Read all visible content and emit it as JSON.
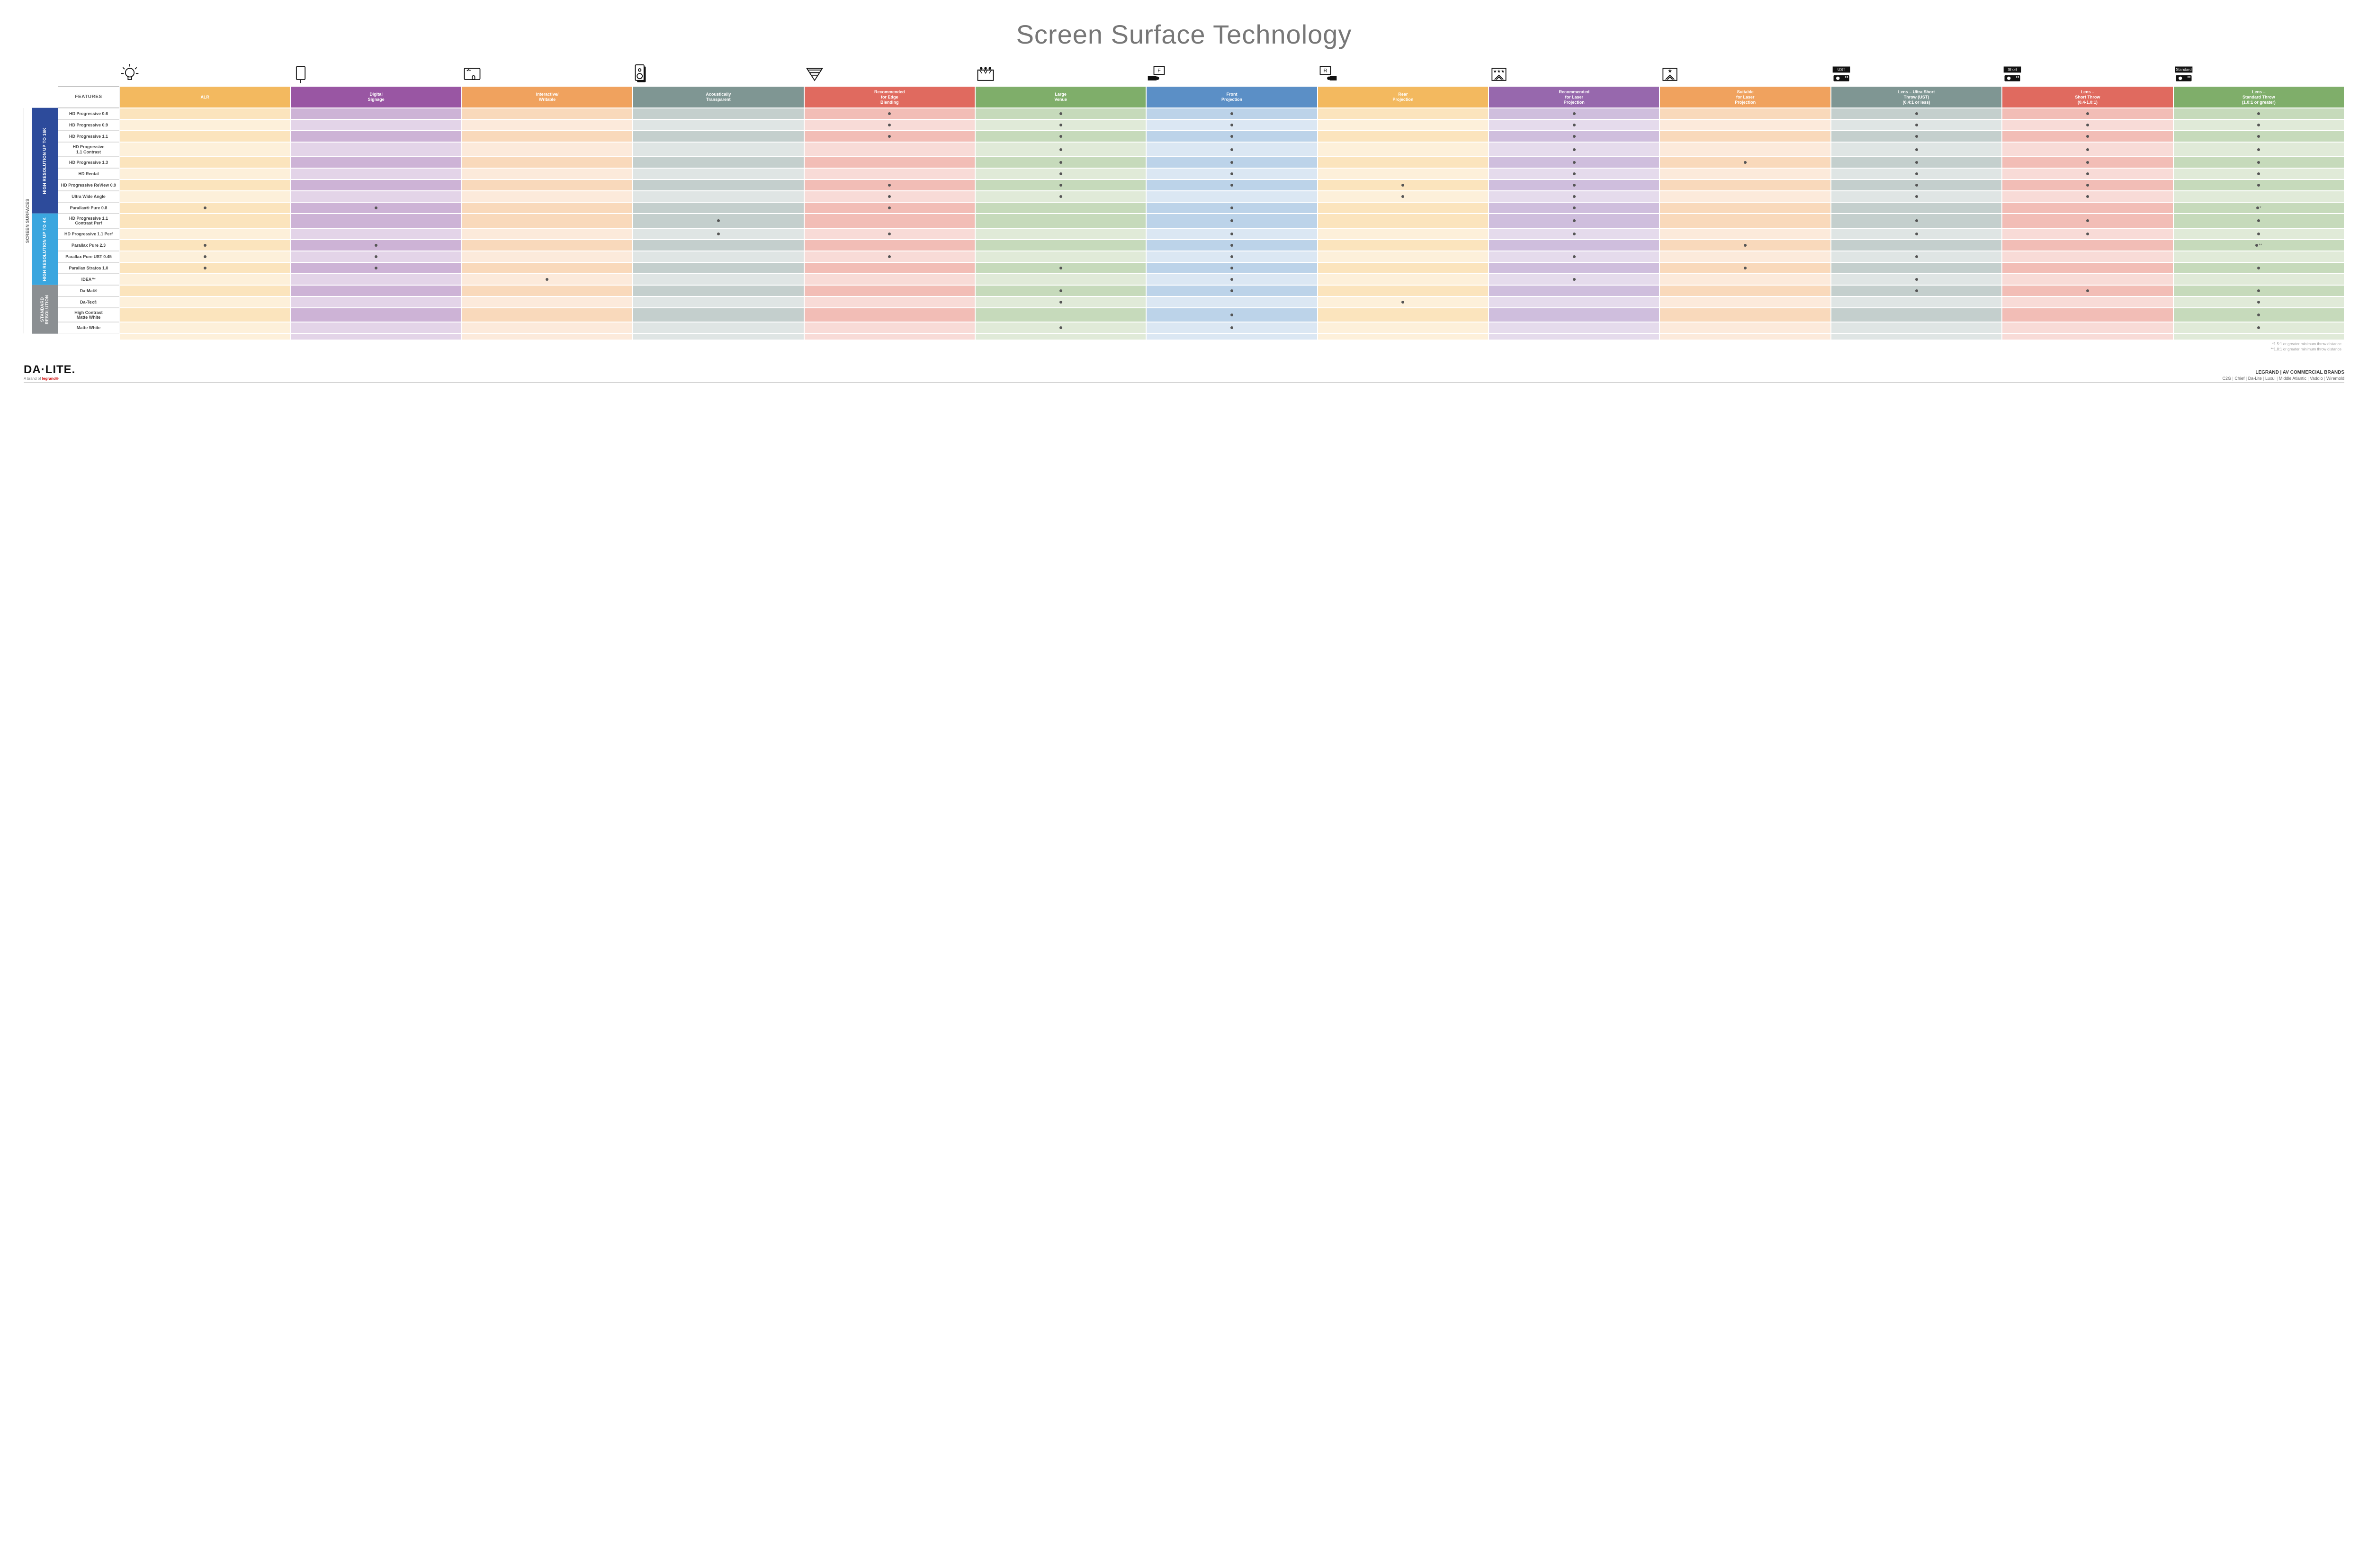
{
  "title": "Screen Surface Technology",
  "columns": [
    {
      "key": "alr",
      "label": "ALR",
      "color": "#f3b95f",
      "light": "#fbe4bd",
      "lighter": "#fdf0da"
    },
    {
      "key": "signage",
      "label": "Digital\nSignage",
      "color": "#9956a3",
      "light": "#cdb3d6",
      "lighter": "#e3d4e8"
    },
    {
      "key": "writable",
      "label": "Interactive/\nWritable",
      "color": "#f0a25e",
      "light": "#f9d9bb",
      "lighter": "#fceadb"
    },
    {
      "key": "acoustic",
      "label": "Acoustically\nTransparent",
      "color": "#7f9693",
      "light": "#c4cfcd",
      "lighter": "#dfe5e4"
    },
    {
      "key": "edge",
      "label": "Recommended\nfor Edge\nBlending",
      "color": "#e06a5f",
      "light": "#f2bdb6",
      "lighter": "#f8dbd7"
    },
    {
      "key": "venue",
      "label": "Large\nVenue",
      "color": "#7fae6a",
      "light": "#c6dabb",
      "lighter": "#e0ead8"
    },
    {
      "key": "front",
      "label": "Front\nProjection",
      "color": "#5b8fc6",
      "light": "#bcd3e9",
      "lighter": "#dbe7f3"
    },
    {
      "key": "rear",
      "label": "Rear\nProjection",
      "color": "#f3b95f",
      "light": "#fbe4bd",
      "lighter": "#fdf0da"
    },
    {
      "key": "reclaser",
      "label": "Recommended\nfor Laser\nProjection",
      "color": "#9768ad",
      "light": "#cfbedd",
      "lighter": "#e5dbec"
    },
    {
      "key": "suitlaser",
      "label": "Suitable\nfor Laser\nProjection",
      "color": "#f0a25e",
      "light": "#f9d9bb",
      "lighter": "#fceadb"
    },
    {
      "key": "ust",
      "label": "Lens – Ultra Short\nThrow (UST)\n(0.4:1 or less)",
      "color": "#7f9693",
      "light": "#c4cfcd",
      "lighter": "#dfe5e4"
    },
    {
      "key": "short",
      "label": "Lens –\nShort Throw\n(0.4-1.0:1)",
      "color": "#e06a5f",
      "light": "#f2bdb6",
      "lighter": "#f8dbd7"
    },
    {
      "key": "std",
      "label": "Lens –\nStandard Throw\n(1.0:1 or greater)",
      "color": "#7fae6a",
      "light": "#c6dabb",
      "lighter": "#e0ead8"
    }
  ],
  "groups": [
    {
      "key": "g16k",
      "label": "HIGH RESOLUTION UP TO 16K",
      "color": "#2d4b9b",
      "rows": [
        {
          "label": "HD Progressive 0.6",
          "dots": {
            "edge": 1,
            "venue": 1,
            "front": 1,
            "reclaser": 1,
            "ust": 1,
            "short": 1,
            "std": 1
          }
        },
        {
          "label": "HD Progressive 0.9",
          "dots": {
            "edge": 1,
            "venue": 1,
            "front": 1,
            "reclaser": 1,
            "ust": 1,
            "short": 1,
            "std": 1
          }
        },
        {
          "label": "HD Progressive 1.1",
          "dots": {
            "edge": 1,
            "venue": 1,
            "front": 1,
            "reclaser": 1,
            "ust": 1,
            "short": 1,
            "std": 1
          }
        },
        {
          "label": "HD Progressive\n1.1 Contrast",
          "dots": {
            "venue": 1,
            "front": 1,
            "reclaser": 1,
            "ust": 1,
            "short": 1,
            "std": 1
          }
        },
        {
          "label": "HD Progressive 1.3",
          "dots": {
            "venue": 1,
            "front": 1,
            "reclaser": 1,
            "suitlaser": 1,
            "ust": 1,
            "short": 1,
            "std": 1
          }
        },
        {
          "label": "HD Rental",
          "dots": {
            "venue": 1,
            "front": 1,
            "reclaser": 1,
            "ust": 1,
            "short": 1,
            "std": 1
          }
        },
        {
          "label": "HD Progressive ReView 0.9",
          "dots": {
            "edge": 1,
            "venue": 1,
            "front": 1,
            "rear": 1,
            "reclaser": 1,
            "ust": 1,
            "short": 1,
            "std": 1
          }
        },
        {
          "label": "Ultra Wide Angle",
          "dots": {
            "edge": 1,
            "venue": 1,
            "rear": 1,
            "reclaser": 1,
            "ust": 1,
            "short": 1
          }
        },
        {
          "label": "Parallax® Pure 0.8",
          "dots": {
            "alr": 1,
            "signage": 1,
            "edge": 1,
            "front": 1,
            "reclaser": 1,
            "std": "*"
          }
        }
      ]
    },
    {
      "key": "g4k",
      "label": "HIGH RESOLUTION UP TO 4K",
      "color": "#3aa6df",
      "rows": [
        {
          "label": "HD Progressive 1.1\nContrast Perf",
          "dots": {
            "acoustic": 1,
            "front": 1,
            "reclaser": 1,
            "ust": 1,
            "short": 1,
            "std": 1
          }
        },
        {
          "label": "HD Progressive 1.1 Perf",
          "dots": {
            "acoustic": 1,
            "edge": 1,
            "front": 1,
            "reclaser": 1,
            "ust": 1,
            "short": 1,
            "std": 1
          }
        },
        {
          "label": "Parallax Pure 2.3",
          "dots": {
            "alr": 1,
            "signage": 1,
            "front": 1,
            "suitlaser": 1,
            "std": "**"
          }
        },
        {
          "label": "Parallax Pure UST 0.45",
          "dots": {
            "alr": 1,
            "signage": 1,
            "edge": 1,
            "front": 1,
            "reclaser": 1,
            "ust": 1
          }
        },
        {
          "label": "Parallax Stratos 1.0",
          "dots": {
            "alr": 1,
            "signage": 1,
            "venue": 1,
            "front": 1,
            "suitlaser": 1,
            "std": 1
          }
        },
        {
          "label": "IDEA™",
          "dots": {
            "writable": 1,
            "front": 1,
            "reclaser": 1,
            "ust": 1
          }
        }
      ]
    },
    {
      "key": "gstd",
      "label": "STANDARD\nRESOLUTION",
      "color": "#8b8f92",
      "rows": [
        {
          "label": "Da-Mat®",
          "dots": {
            "venue": 1,
            "front": 1,
            "ust": 1,
            "short": 1,
            "std": 1
          }
        },
        {
          "label": "Da-Tex®",
          "dots": {
            "venue": 1,
            "rear": 1,
            "std": 1
          }
        },
        {
          "label": "High Contrast\nMatte White",
          "dots": {
            "front": 1,
            "std": 1
          }
        },
        {
          "label": "Matte White",
          "dots": {
            "venue": 1,
            "front": 1,
            "std": 1
          }
        }
      ]
    }
  ],
  "outerLabel": "SCREEN SURFACES",
  "featuresHeader": "FEATURES",
  "notes": [
    "*1.5:1 or greater minimum throw distance",
    "**1.8:1 or greater minimum throw distance"
  ],
  "footer": {
    "logo": "DA·LITE.",
    "logoSub1": "A brand of ",
    "logoSub2": "legrand®",
    "right1": "LEGRAND | AV COMMERCIAL BRANDS",
    "brands": [
      "C2G",
      "Chief",
      "Da-Lite",
      "Luxul",
      "Middle Atlantic",
      "Vaddio",
      "Wiremold"
    ]
  },
  "icons": {
    "alr": "bulb",
    "signage": "signage",
    "writable": "touch",
    "acoustic": "speaker",
    "edge": "wedge",
    "venue": "venue",
    "front": "front",
    "rear": "rear",
    "reclaser": "laser3",
    "suitlaser": "laser1",
    "ust": "proj-ust",
    "short": "proj-short",
    "std": "proj-std"
  }
}
